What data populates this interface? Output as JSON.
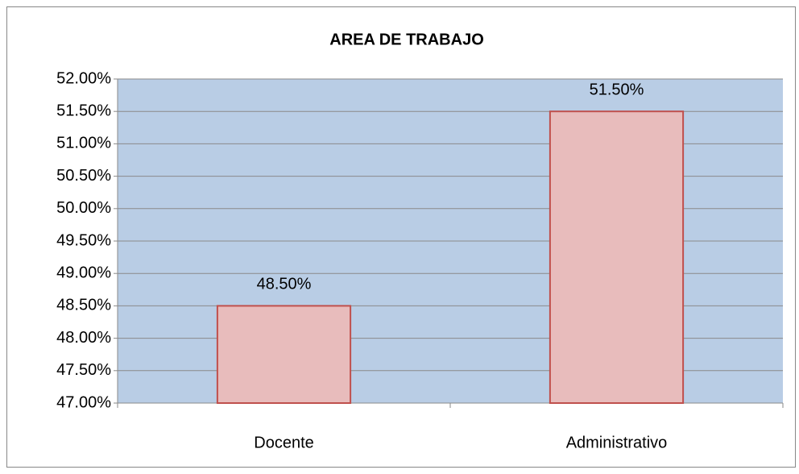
{
  "chart_data": {
    "type": "bar",
    "title": "AREA DE TRABAJO",
    "categories": [
      "Docente",
      "Administrativo"
    ],
    "values": [
      48.5,
      51.5
    ],
    "value_labels": [
      "48.50%",
      "51.50%"
    ],
    "color": "#e8bcbc",
    "edge_color": "#c0504d",
    "plot_background": "#b9cde5",
    "ylim": [
      47,
      52
    ],
    "yticks": [
      {
        "value": 47,
        "label": "47.00%"
      },
      {
        "value": 47.5,
        "label": "47.50%"
      },
      {
        "value": 48,
        "label": "48.00%"
      },
      {
        "value": 48.5,
        "label": "48.50%"
      },
      {
        "value": 49,
        "label": "49.00%"
      },
      {
        "value": 49.5,
        "label": "49.50%"
      },
      {
        "value": 50,
        "label": "50.00%"
      },
      {
        "value": 50.5,
        "label": "50.50%"
      },
      {
        "value": 51,
        "label": "51.00%"
      },
      {
        "value": 51.5,
        "label": "51.50%"
      },
      {
        "value": 52,
        "label": "52.00%"
      }
    ],
    "grid": true
  }
}
